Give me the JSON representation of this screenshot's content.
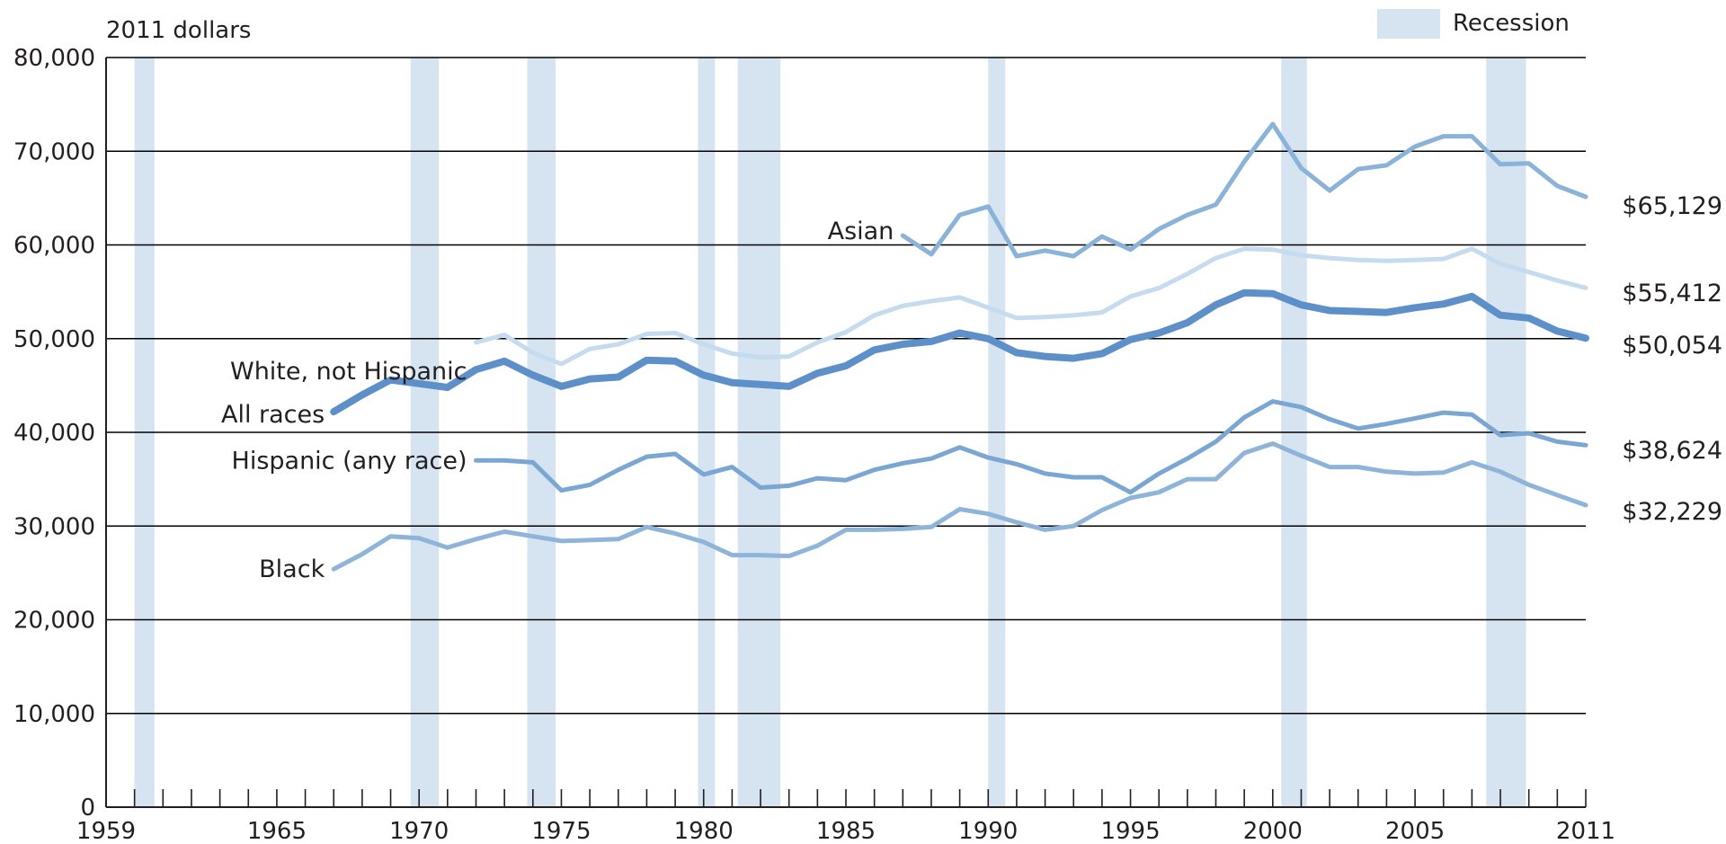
{
  "chart_data": {
    "type": "line",
    "unit_label": "2011 dollars",
    "x_ticks": [
      "1959",
      "1965",
      "1970",
      "1975",
      "1980",
      "1985",
      "1990",
      "1995",
      "2000",
      "2005",
      "2011"
    ],
    "y_ticks": [
      "0",
      "10,000",
      "20,000",
      "30,000",
      "40,000",
      "50,000",
      "60,000",
      "70,000",
      "80,000"
    ],
    "xlim": [
      1959,
      2011
    ],
    "ylim": [
      0,
      80000
    ],
    "grid": "horizontal",
    "legend": {
      "label": "Recession",
      "position": "top-right"
    },
    "recessions": [
      [
        1960.0,
        1960.7
      ],
      [
        1969.7,
        1970.7
      ],
      [
        1973.8,
        1974.8
      ],
      [
        1979.8,
        1980.4
      ],
      [
        1981.2,
        1982.7
      ],
      [
        1990.0,
        1990.6
      ],
      [
        2000.3,
        2001.2
      ],
      [
        2007.5,
        2008.9
      ]
    ],
    "series": [
      {
        "name": "Asian",
        "end_label": "$65,129",
        "color": "#8bb2d8",
        "width": 5,
        "x": [
          1987,
          1988,
          1989,
          1990,
          1991,
          1992,
          1993,
          1994,
          1995,
          1996,
          1997,
          1998,
          1999,
          2000,
          2001,
          2002,
          2003,
          2004,
          2005,
          2006,
          2007,
          2008,
          2009,
          2010,
          2011
        ],
        "values": [
          61000,
          59000,
          63200,
          64100,
          58800,
          59400,
          58800,
          60900,
          59500,
          61700,
          63200,
          64300,
          68900,
          72900,
          68200,
          65800,
          68100,
          68500,
          70500,
          71600,
          71600,
          68600,
          68700,
          66300,
          65129
        ]
      },
      {
        "name": "White, not Hispanic",
        "end_label": "$55,412",
        "color": "#c5dbef",
        "width": 5,
        "x": [
          1972,
          1973,
          1974,
          1975,
          1976,
          1977,
          1978,
          1979,
          1980,
          1981,
          1982,
          1983,
          1984,
          1985,
          1986,
          1987,
          1988,
          1989,
          1990,
          1991,
          1992,
          1993,
          1994,
          1995,
          1996,
          1997,
          1998,
          1999,
          2000,
          2001,
          2002,
          2003,
          2004,
          2005,
          2006,
          2007,
          2008,
          2009,
          2010,
          2011
        ],
        "values": [
          49600,
          50400,
          48500,
          47300,
          48900,
          49400,
          50500,
          50600,
          49400,
          48400,
          48000,
          48100,
          49600,
          50700,
          52500,
          53500,
          54000,
          54400,
          53300,
          52200,
          52300,
          52500,
          52800,
          54500,
          55400,
          56900,
          58600,
          59600,
          59500,
          58900,
          58600,
          58400,
          58300,
          58400,
          58500,
          59600,
          58000,
          57100,
          56200,
          55412
        ]
      },
      {
        "name": "All races",
        "end_label": "$50,054",
        "color": "#5d90c9",
        "width": 8,
        "x": [
          1967,
          1968,
          1969,
          1970,
          1971,
          1972,
          1973,
          1974,
          1975,
          1976,
          1977,
          1978,
          1979,
          1980,
          1981,
          1982,
          1983,
          1984,
          1985,
          1986,
          1987,
          1988,
          1989,
          1990,
          1991,
          1992,
          1993,
          1994,
          1995,
          1996,
          1997,
          1998,
          1999,
          2000,
          2001,
          2002,
          2003,
          2004,
          2005,
          2006,
          2007,
          2008,
          2009,
          2010,
          2011
        ],
        "values": [
          42200,
          44000,
          45600,
          45200,
          44800,
          46700,
          47600,
          46100,
          44900,
          45700,
          45900,
          47700,
          47600,
          46100,
          45300,
          45100,
          44900,
          46300,
          47100,
          48800,
          49400,
          49700,
          50600,
          50000,
          48500,
          48100,
          47900,
          48400,
          49900,
          50600,
          51700,
          53600,
          54900,
          54800,
          53600,
          53000,
          52900,
          52800,
          53300,
          53700,
          54500,
          52500,
          52200,
          50800,
          50054
        ]
      },
      {
        "name": "Hispanic (any race)",
        "end_label": "$38,624",
        "color": "#7aa6d3",
        "width": 5,
        "x": [
          1972,
          1973,
          1974,
          1975,
          1976,
          1977,
          1978,
          1979,
          1980,
          1981,
          1982,
          1983,
          1984,
          1985,
          1986,
          1987,
          1988,
          1989,
          1990,
          1991,
          1992,
          1993,
          1994,
          1995,
          1996,
          1997,
          1998,
          1999,
          2000,
          2001,
          2002,
          2003,
          2004,
          2005,
          2006,
          2007,
          2008,
          2009,
          2010,
          2011
        ],
        "values": [
          37000,
          37000,
          36800,
          33800,
          34400,
          36000,
          37400,
          37700,
          35500,
          36300,
          34100,
          34300,
          35100,
          34900,
          36000,
          36700,
          37200,
          38400,
          37300,
          36600,
          35600,
          35200,
          35200,
          33600,
          35600,
          37200,
          39000,
          41600,
          43300,
          42700,
          41400,
          40400,
          40900,
          41500,
          42100,
          41900,
          39700,
          39900,
          39000,
          38624
        ]
      },
      {
        "name": "Black",
        "end_label": "$32,229",
        "color": "#8fb4da",
        "width": 5,
        "x": [
          1967,
          1968,
          1969,
          1970,
          1971,
          1972,
          1973,
          1974,
          1975,
          1976,
          1977,
          1978,
          1979,
          1980,
          1981,
          1982,
          1983,
          1984,
          1985,
          1986,
          1987,
          1988,
          1989,
          1990,
          1991,
          1992,
          1993,
          1994,
          1995,
          1996,
          1997,
          1998,
          1999,
          2000,
          2001,
          2002,
          2003,
          2004,
          2005,
          2006,
          2007,
          2008,
          2009,
          2010,
          2011
        ],
        "values": [
          25400,
          27000,
          28900,
          28700,
          27700,
          28600,
          29400,
          28900,
          28400,
          28500,
          28600,
          29900,
          29200,
          28300,
          26900,
          26900,
          26800,
          27900,
          29600,
          29600,
          29700,
          29900,
          31800,
          31300,
          30400,
          29600,
          30000,
          31700,
          33000,
          33600,
          35000,
          35000,
          37800,
          38800,
          37500,
          36300,
          36300,
          35800,
          35600,
          35700,
          36800,
          35800,
          34400,
          33300,
          32229
        ]
      }
    ]
  },
  "colors": {
    "recession": "#d6e4f2",
    "grid": "#000000",
    "axis": "#231f20"
  }
}
